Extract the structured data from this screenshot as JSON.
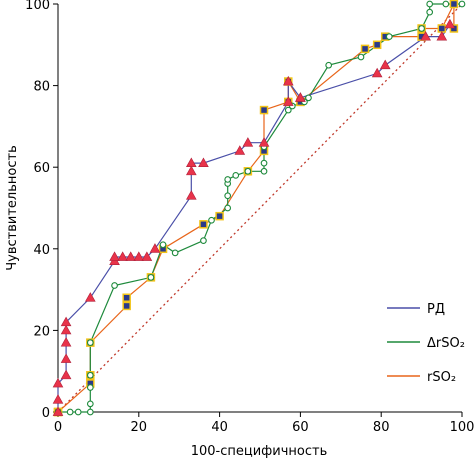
{
  "chart_data": {
    "type": "line",
    "xlabel": "100-специфичность",
    "ylabel": "Чувствительность",
    "xlim": [
      0,
      100
    ],
    "ylim": [
      0,
      100
    ],
    "xticks": [
      0,
      20,
      40,
      60,
      80,
      100
    ],
    "yticks": [
      0,
      20,
      40,
      60,
      80,
      100
    ],
    "grid": false,
    "legend_position": "bottom-right",
    "reference_line": {
      "from": [
        0,
        0
      ],
      "to": [
        100,
        100
      ],
      "style": "dotted",
      "color": "#c0392b"
    },
    "series": [
      {
        "name": "РД",
        "color": "#4a4fa8",
        "x": [
          0,
          0,
          0,
          2,
          2,
          2,
          2,
          2,
          8,
          14,
          14,
          16,
          18,
          20,
          22,
          24,
          33,
          33,
          33,
          36,
          45,
          47,
          51,
          57,
          57,
          60,
          60,
          79,
          81,
          91,
          95,
          97
        ],
        "y": [
          0,
          3,
          7,
          9,
          13,
          17,
          20,
          22,
          28,
          37,
          38,
          38,
          38,
          38,
          38,
          40,
          53,
          59,
          61,
          61,
          64,
          66,
          66,
          76,
          81,
          77,
          77,
          83,
          85,
          92,
          92,
          95
        ]
      },
      {
        "name": "ΔrSO₂",
        "color": "#1e8a3c",
        "x": [
          0,
          0,
          3,
          5,
          8,
          8,
          8,
          8,
          8,
          14,
          23,
          26,
          29,
          36,
          38,
          42,
          42,
          42,
          42,
          44,
          47,
          51,
          51,
          51,
          57,
          58,
          61,
          62,
          67,
          75,
          82,
          90,
          92,
          92,
          96,
          100
        ],
        "y": [
          0,
          0,
          0,
          0,
          0,
          2,
          6,
          9,
          17,
          31,
          33,
          41,
          39,
          42,
          47,
          50,
          53,
          56,
          57,
          58,
          59,
          59,
          61,
          65,
          74,
          75,
          76,
          77,
          85,
          87,
          92,
          94,
          98,
          100,
          100,
          100
        ]
      },
      {
        "name": "rSO₂",
        "color": "#e8651a",
        "x": [
          0,
          0,
          8,
          8,
          8,
          17,
          17,
          23,
          26,
          36,
          40,
          47,
          51,
          51,
          57,
          57,
          60,
          76,
          79,
          81,
          90,
          90,
          95,
          98,
          98
        ],
        "y": [
          0,
          0,
          7,
          9,
          17,
          26,
          28,
          33,
          40,
          46,
          48,
          59,
          64,
          74,
          76,
          81,
          76,
          89,
          90,
          92,
          92,
          94,
          94,
          100,
          94
        ]
      }
    ]
  }
}
